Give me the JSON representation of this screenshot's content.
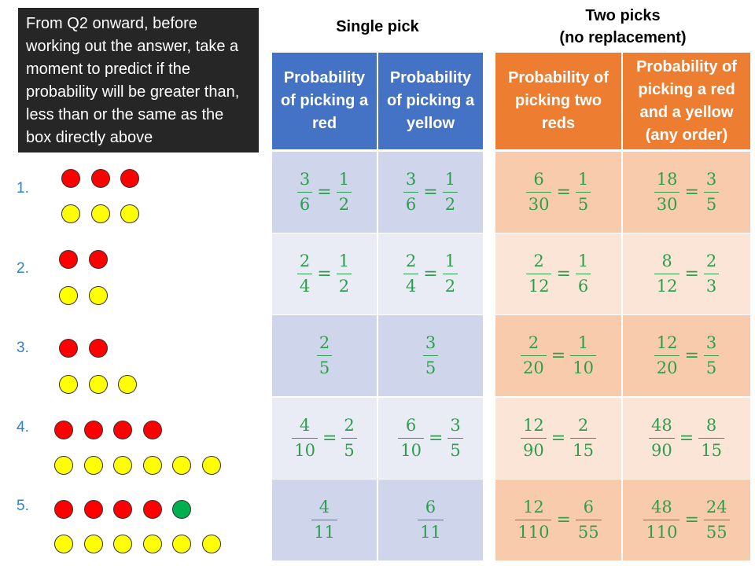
{
  "note": "From Q2 onward, before working out the answer, take a moment to predict if the probability will be greater than, less than or the same as the box directly above",
  "headings": {
    "single": "Single pick",
    "two_line1": "Two picks",
    "two_line2": "(no replacement)"
  },
  "columns": [
    "Probability of picking a red",
    "Probability of picking a yellow",
    "Probability of picking two reds",
    "Probability of picking a red and a yellow (any order)"
  ],
  "colors": {
    "blue_header": "#4472c4",
    "orange_header": "#ed7d31",
    "blue_dark": "#cfd5ea",
    "blue_light": "#e9ebf5",
    "orange_dark": "#f8cbad",
    "orange_light": "#fbe5d6",
    "red_ball": "#ff0000",
    "yellow_ball": "#ffff00",
    "green_ball": "#00b050",
    "fraction_text": "#2e9e4e",
    "question_number": "#2f80c8"
  },
  "questions": [
    {
      "label": "1.",
      "balls": {
        "red": 3,
        "green": 0,
        "yellow": 3
      },
      "answers": [
        [
          {
            "n": "3",
            "d": "6"
          },
          {
            "n": "1",
            "d": "2"
          }
        ],
        [
          {
            "n": "3",
            "d": "6"
          },
          {
            "n": "1",
            "d": "2"
          }
        ],
        [
          {
            "n": "6",
            "d": "30"
          },
          {
            "n": "1",
            "d": "5"
          }
        ],
        [
          {
            "n": "18",
            "d": "30"
          },
          {
            "n": "3",
            "d": "5"
          }
        ]
      ]
    },
    {
      "label": "2.",
      "balls": {
        "red": 2,
        "green": 0,
        "yellow": 2
      },
      "answers": [
        [
          {
            "n": "2",
            "d": "4"
          },
          {
            "n": "1",
            "d": "2"
          }
        ],
        [
          {
            "n": "2",
            "d": "4"
          },
          {
            "n": "1",
            "d": "2"
          }
        ],
        [
          {
            "n": "2",
            "d": "12"
          },
          {
            "n": "1",
            "d": "6"
          }
        ],
        [
          {
            "n": "8",
            "d": "12"
          },
          {
            "n": "2",
            "d": "3"
          }
        ]
      ]
    },
    {
      "label": "3.",
      "balls": {
        "red": 2,
        "green": 0,
        "yellow": 3
      },
      "answers": [
        [
          {
            "n": "2",
            "d": "5"
          }
        ],
        [
          {
            "n": "3",
            "d": "5"
          }
        ],
        [
          {
            "n": "2",
            "d": "20"
          },
          {
            "n": "1",
            "d": "10"
          }
        ],
        [
          {
            "n": "12",
            "d": "20"
          },
          {
            "n": "3",
            "d": "5"
          }
        ]
      ]
    },
    {
      "label": "4.",
      "balls": {
        "red": 4,
        "green": 0,
        "yellow": 6
      },
      "answers": [
        [
          {
            "n": "4",
            "d": "10"
          },
          {
            "n": "2",
            "d": "5"
          }
        ],
        [
          {
            "n": "6",
            "d": "10"
          },
          {
            "n": "3",
            "d": "5"
          }
        ],
        [
          {
            "n": "12",
            "d": "90"
          },
          {
            "n": "2",
            "d": "15"
          }
        ],
        [
          {
            "n": "48",
            "d": "90"
          },
          {
            "n": "8",
            "d": "15"
          }
        ]
      ]
    },
    {
      "label": "5.",
      "balls": {
        "red": 4,
        "green": 1,
        "yellow": 6
      },
      "answers": [
        [
          {
            "n": "4",
            "d": "11"
          }
        ],
        [
          {
            "n": "6",
            "d": "11"
          }
        ],
        [
          {
            "n": "12",
            "d": "110"
          },
          {
            "n": "6",
            "d": "55"
          }
        ],
        [
          {
            "n": "48",
            "d": "110"
          },
          {
            "n": "24",
            "d": "55"
          }
        ]
      ]
    }
  ]
}
